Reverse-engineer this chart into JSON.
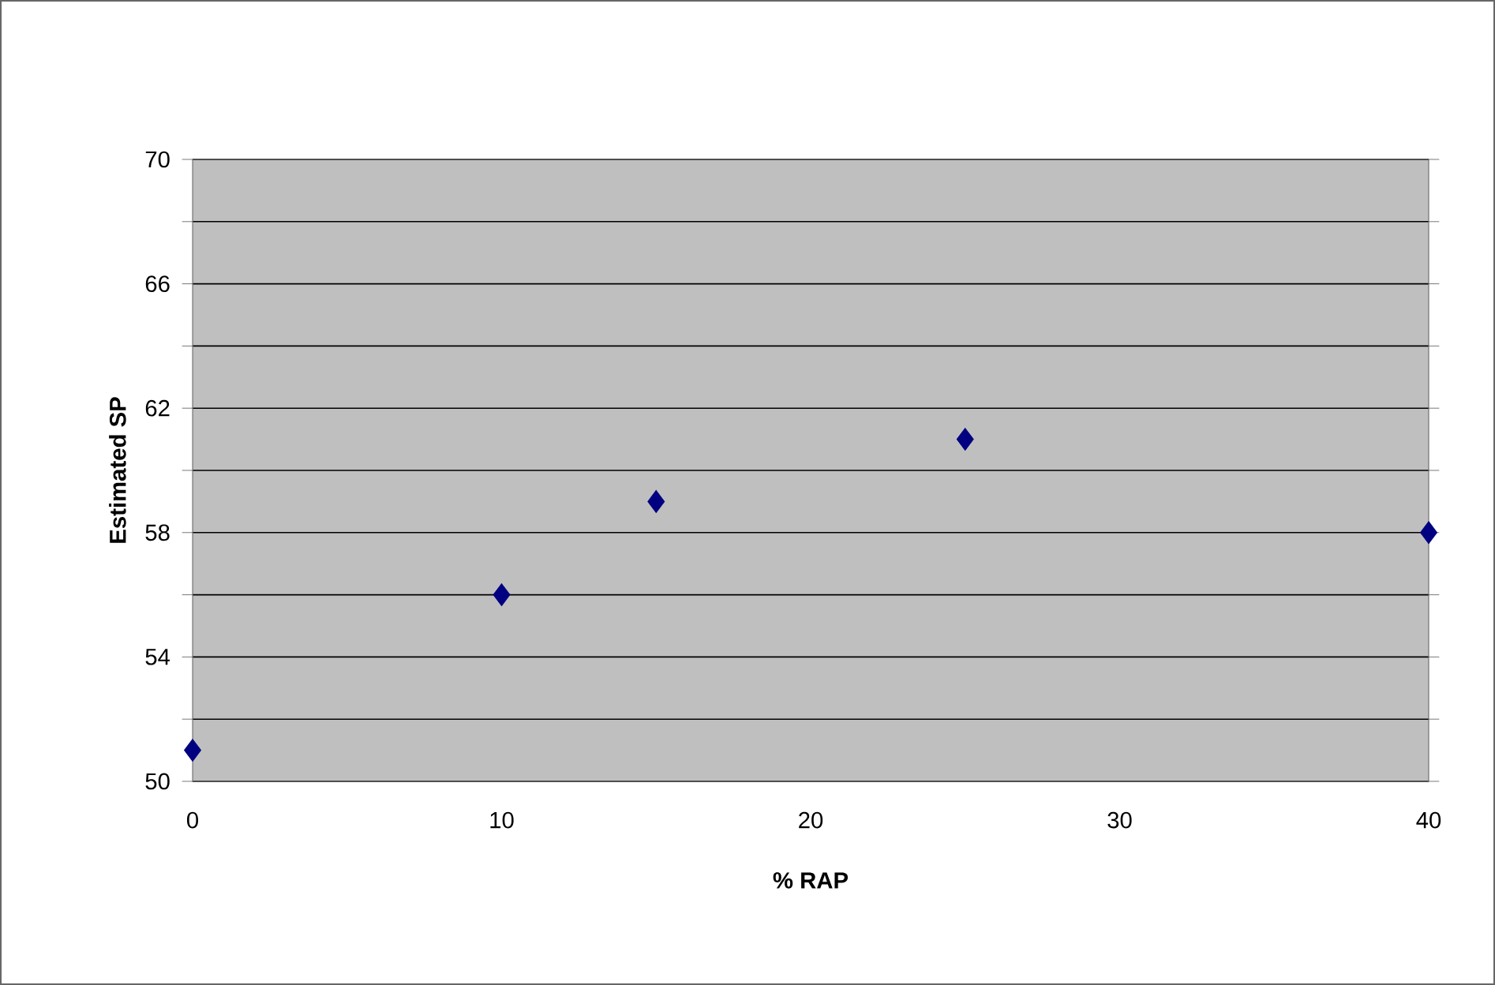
{
  "chart_data": {
    "type": "scatter",
    "xlabel": "% RAP",
    "ylabel": "Estimated SP",
    "x": [
      0,
      10,
      15,
      25,
      40
    ],
    "series": [
      {
        "color": "#000080",
        "values": [
          51,
          56,
          59,
          61,
          58
        ]
      }
    ],
    "xlim": [
      0,
      40
    ],
    "ylim": [
      50,
      70
    ],
    "xticks": [
      0,
      10,
      20,
      30,
      40
    ],
    "yticks": [
      50,
      {
        "value": 52,
        "label": null
      },
      54,
      {
        "value": 56,
        "label": null
      },
      58,
      {
        "value": 60,
        "label": null
      },
      62,
      {
        "value": 64,
        "label": null
      },
      66,
      {
        "value": 68,
        "label": null
      },
      70
    ],
    "grid": "y",
    "marker": "diamond"
  }
}
